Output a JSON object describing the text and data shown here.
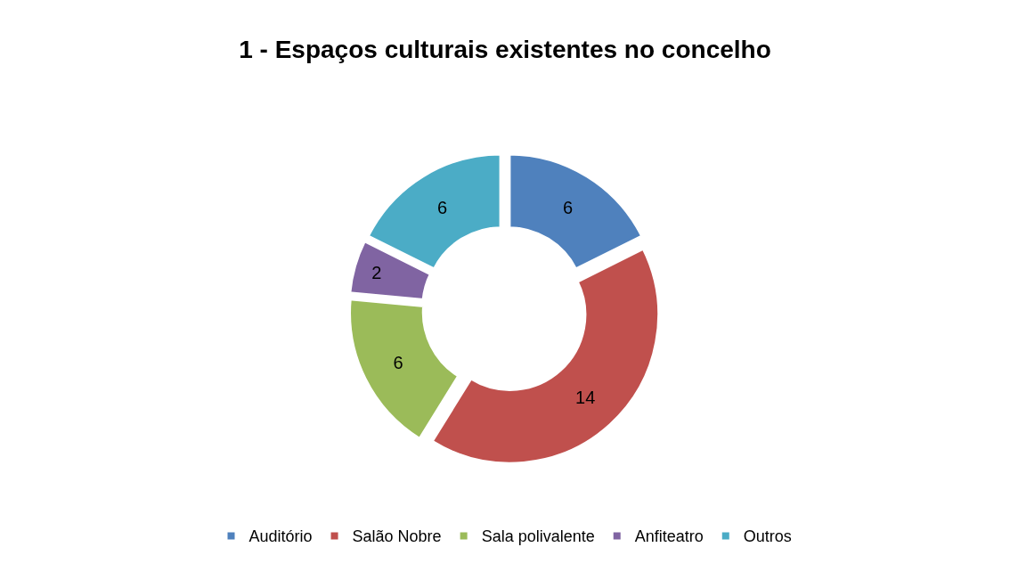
{
  "chart_data": {
    "type": "donut",
    "title": "1 - Espaços culturais existentes no concelho",
    "categories": [
      "Auditório",
      "Salão Nobre",
      "Sala polivalente",
      "Anfiteatro",
      "Outros"
    ],
    "values": [
      6,
      14,
      6,
      2,
      6
    ],
    "colors": [
      "#4f81bd",
      "#c0504d",
      "#9bbb59",
      "#8064a2",
      "#4bacc6"
    ],
    "data_labels": true,
    "legend": "bottom"
  }
}
